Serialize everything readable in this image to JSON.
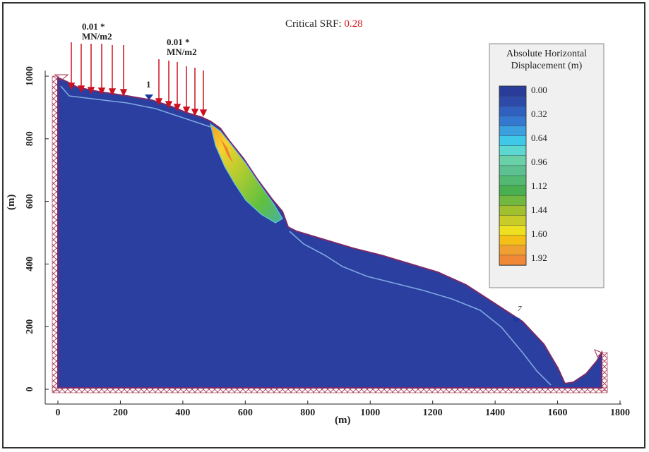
{
  "title": {
    "label": "Critical SRF: ",
    "value": "0.28"
  },
  "loads": [
    {
      "value": "0.01 *",
      "unit": "MN/m2"
    },
    {
      "value": "0.01 *",
      "unit": "MN/m2"
    }
  ],
  "markers": [
    "1",
    "7"
  ],
  "xaxis": {
    "label": "(m)",
    "ticks": [
      "0",
      "200",
      "400",
      "600",
      "800",
      "1000",
      "1200",
      "1400",
      "1600",
      "1800"
    ],
    "range": [
      0,
      1800
    ]
  },
  "yaxis": {
    "label": "(m)",
    "ticks": [
      "0",
      "200",
      "400",
      "600",
      "800",
      "1000"
    ],
    "range": [
      0,
      1000
    ]
  },
  "legend": {
    "title_line1": "Absolute Horizontal",
    "title_line2": "Displacement (m)",
    "values": [
      "0.00",
      "0.32",
      "0.64",
      "0.96",
      "1.12",
      "1.44",
      "1.60",
      "1.92"
    ],
    "colors": [
      "#2a3c9a",
      "#2e4aa8",
      "#3060c0",
      "#3478d0",
      "#3aa0e0",
      "#40c8e8",
      "#5cd8d0",
      "#6ad0a8",
      "#5cc090",
      "#52b872",
      "#48b050",
      "#70b840",
      "#a0c030",
      "#c8cc28",
      "#ece020",
      "#f4c018",
      "#f0a030",
      "#f08838"
    ]
  },
  "colors": {
    "body": "#2a3fa0",
    "slip_line": "#7fa8e0",
    "load_arrow": "#cc1020",
    "boundary": "#a0304a",
    "marker": "#1a3aa0"
  }
}
